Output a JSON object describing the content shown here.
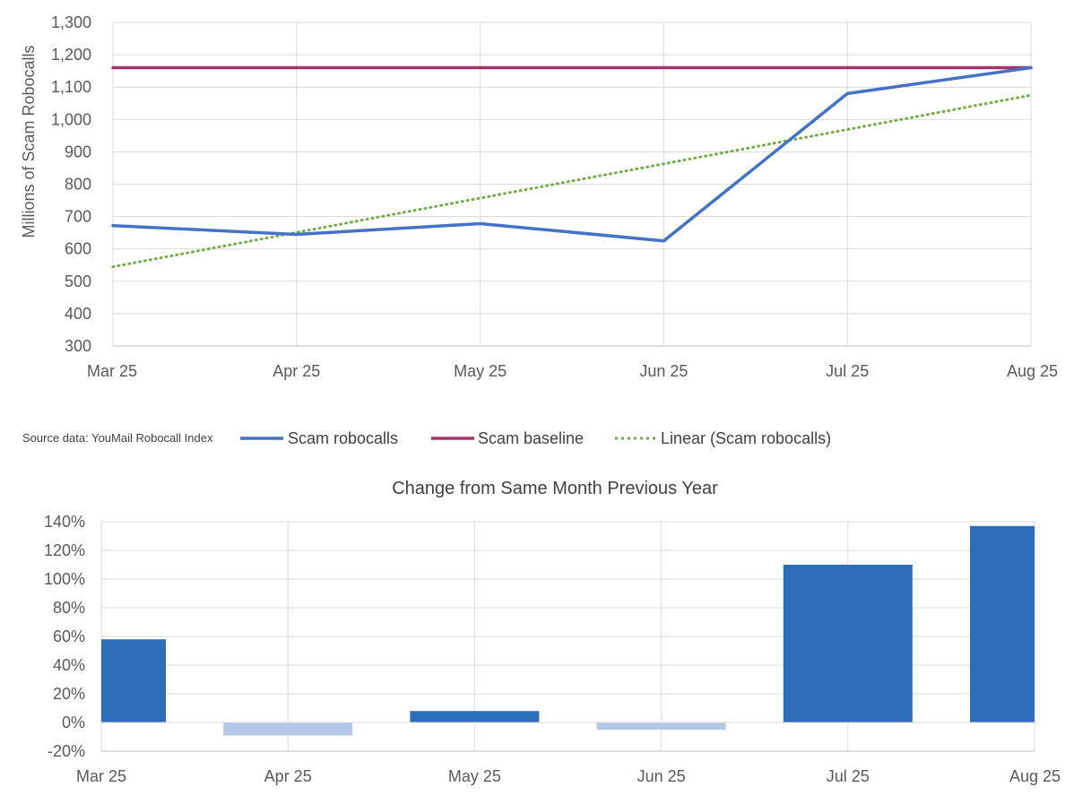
{
  "source_note": "Source data: YouMail Robocall Index",
  "chart_data": [
    {
      "type": "line",
      "title": "",
      "xlabel": "",
      "ylabel": "Millions of Scam Robocalls",
      "categories": [
        "Mar 25",
        "Apr 25",
        "May 25",
        "Jun 25",
        "Jul 25",
        "Aug 25"
      ],
      "ylim": [
        300,
        1300
      ],
      "yticks": [
        "300",
        "400",
        "500",
        "600",
        "700",
        "800",
        "900",
        "1,000",
        "1,100",
        "1,200",
        "1,300"
      ],
      "grid": true,
      "legend_position": "bottom",
      "series": [
        {
          "name": "Scam robocalls",
          "values": [
            672,
            645,
            678,
            625,
            1080,
            1160
          ],
          "color": "#4472C4",
          "style": "solid"
        },
        {
          "name": "Scam baseline",
          "values": [
            1160,
            1160,
            1160,
            1160,
            1160,
            1160
          ],
          "color": "#A8326E",
          "style": "solid"
        },
        {
          "name": "Linear (Scam robocalls)",
          "values": [
            545,
            651,
            757,
            863,
            969,
            1075
          ],
          "color": "#70AD47",
          "style": "dotted"
        }
      ]
    },
    {
      "type": "bar",
      "title": "Change from Same Month Previous Year",
      "xlabel": "",
      "ylabel": "",
      "categories": [
        "Mar 25",
        "Apr 25",
        "May 25",
        "Jun 25",
        "Jul 25",
        "Aug 25"
      ],
      "values": [
        58,
        -9,
        8,
        -5,
        110,
        137
      ],
      "unit": "%",
      "ylim": [
        -20,
        140
      ],
      "yticks": [
        "-20%",
        "0%",
        "20%",
        "40%",
        "60%",
        "80%",
        "100%",
        "120%",
        "140%"
      ],
      "grid": true,
      "colors": {
        "positive": "#2E6DB8",
        "negative": "#B4C7E7"
      }
    }
  ]
}
